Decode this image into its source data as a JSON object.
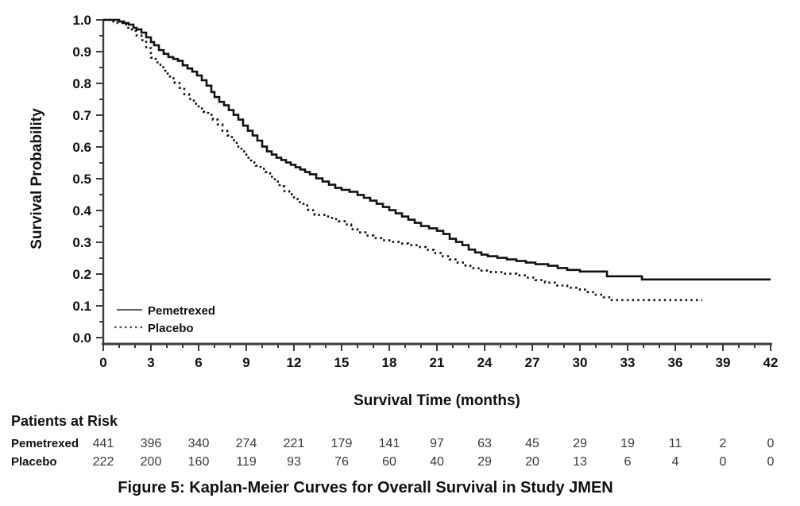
{
  "figure": {
    "title": "Figure 5: Kaplan-Meier Curves for Overall Survival in Study JMEN",
    "x_axis_label": "Survival Time (months)",
    "y_axis_label": "Survival Probability",
    "risk_header": "Patients at Risk"
  },
  "colors": {
    "curve": "#111111",
    "axis": "#3d3d3d",
    "legend_sample": "#4a4a4a",
    "risk_numbers": "#3a3a3a"
  },
  "chart_data": {
    "type": "line",
    "subtype": "kaplan-meier-step",
    "title": "Figure 5: Kaplan-Meier Curves for Overall Survival in Study JMEN",
    "xlabel": "Survival Time (months)",
    "ylabel": "Survival Probability",
    "xlim": [
      0,
      42
    ],
    "ylim": [
      0.0,
      1.0
    ],
    "grid": false,
    "legend_position": "lower-left-inside",
    "x_major_ticks": [
      0,
      3,
      6,
      9,
      12,
      15,
      18,
      21,
      24,
      27,
      30,
      33,
      36,
      39,
      42
    ],
    "x_minor_step": 1,
    "y_ticks": [
      {
        "label": "1.0",
        "value": 1.0
      },
      {
        "label": "0.9",
        "value": 0.9
      },
      {
        "label": "0.8",
        "value": 0.8
      },
      {
        "label": "0.7",
        "value": 0.7
      },
      {
        "label": "0.6",
        "value": 0.6
      },
      {
        "label": "0.5",
        "value": 0.5
      },
      {
        "label": "0.4",
        "value": 0.4
      },
      {
        "label": "0.3",
        "value": 0.3
      },
      {
        "label": "0.2",
        "value": 0.2
      },
      {
        "label": "0.1",
        "value": 0.1
      },
      {
        "label": "0.0",
        "value": 0.0
      }
    ],
    "y_minor_step": 0.05,
    "series": [
      {
        "name": "Pemetrexed",
        "line_style": "solid",
        "points": [
          [
            0,
            1.0
          ],
          [
            0.8,
            1.0
          ],
          [
            1.0,
            0.995
          ],
          [
            1.3,
            0.99
          ],
          [
            1.6,
            0.985
          ],
          [
            1.9,
            0.975
          ],
          [
            2.1,
            0.97
          ],
          [
            2.4,
            0.96
          ],
          [
            2.7,
            0.945
          ],
          [
            3.0,
            0.93
          ],
          [
            3.2,
            0.92
          ],
          [
            3.5,
            0.905
          ],
          [
            3.8,
            0.893
          ],
          [
            4.1,
            0.883
          ],
          [
            4.4,
            0.877
          ],
          [
            4.7,
            0.871
          ],
          [
            5.0,
            0.857
          ],
          [
            5.3,
            0.847
          ],
          [
            5.6,
            0.837
          ],
          [
            5.9,
            0.825
          ],
          [
            6.2,
            0.81
          ],
          [
            6.5,
            0.793
          ],
          [
            6.8,
            0.773
          ],
          [
            7.0,
            0.757
          ],
          [
            7.3,
            0.742
          ],
          [
            7.6,
            0.731
          ],
          [
            7.9,
            0.716
          ],
          [
            8.2,
            0.701
          ],
          [
            8.5,
            0.686
          ],
          [
            8.8,
            0.667
          ],
          [
            9.1,
            0.651
          ],
          [
            9.4,
            0.636
          ],
          [
            9.7,
            0.62
          ],
          [
            10.0,
            0.601
          ],
          [
            10.3,
            0.586
          ],
          [
            10.6,
            0.576
          ],
          [
            10.9,
            0.566
          ],
          [
            11.2,
            0.559
          ],
          [
            11.5,
            0.551
          ],
          [
            11.8,
            0.544
          ],
          [
            12.1,
            0.536
          ],
          [
            12.4,
            0.529
          ],
          [
            12.7,
            0.521
          ],
          [
            13.0,
            0.514
          ],
          [
            13.4,
            0.501
          ],
          [
            13.8,
            0.491
          ],
          [
            14.2,
            0.481
          ],
          [
            14.6,
            0.471
          ],
          [
            15.0,
            0.465
          ],
          [
            15.5,
            0.459
          ],
          [
            16.0,
            0.449
          ],
          [
            16.4,
            0.44
          ],
          [
            16.8,
            0.431
          ],
          [
            17.2,
            0.421
          ],
          [
            17.6,
            0.411
          ],
          [
            18.0,
            0.401
          ],
          [
            18.4,
            0.391
          ],
          [
            18.8,
            0.381
          ],
          [
            19.2,
            0.371
          ],
          [
            19.6,
            0.361
          ],
          [
            20.0,
            0.351
          ],
          [
            20.5,
            0.344
          ],
          [
            21.0,
            0.336
          ],
          [
            21.4,
            0.326
          ],
          [
            21.8,
            0.311
          ],
          [
            22.2,
            0.301
          ],
          [
            22.6,
            0.291
          ],
          [
            23.0,
            0.277
          ],
          [
            23.4,
            0.268
          ],
          [
            23.8,
            0.261
          ],
          [
            24.2,
            0.256
          ],
          [
            24.8,
            0.251
          ],
          [
            25.4,
            0.246
          ],
          [
            26.0,
            0.241
          ],
          [
            26.6,
            0.236
          ],
          [
            27.2,
            0.231
          ],
          [
            28.0,
            0.226
          ],
          [
            28.6,
            0.219
          ],
          [
            29.2,
            0.213
          ],
          [
            30.0,
            0.208
          ],
          [
            31.7,
            0.193
          ],
          [
            33.9,
            0.183
          ],
          [
            42.0,
            0.183
          ]
        ]
      },
      {
        "name": "Placebo",
        "line_style": "dotted",
        "points": [
          [
            0,
            1.0
          ],
          [
            0.5,
            0.995
          ],
          [
            0.9,
            0.99
          ],
          [
            1.2,
            0.985
          ],
          [
            1.5,
            0.975
          ],
          [
            1.8,
            0.965
          ],
          [
            2.1,
            0.951
          ],
          [
            2.4,
            0.936
          ],
          [
            2.7,
            0.911
          ],
          [
            3.0,
            0.881
          ],
          [
            3.3,
            0.866
          ],
          [
            3.6,
            0.851
          ],
          [
            3.9,
            0.831
          ],
          [
            4.2,
            0.816
          ],
          [
            4.5,
            0.801
          ],
          [
            4.8,
            0.786
          ],
          [
            5.1,
            0.766
          ],
          [
            5.4,
            0.751
          ],
          [
            5.7,
            0.736
          ],
          [
            6.0,
            0.721
          ],
          [
            6.3,
            0.711
          ],
          [
            6.6,
            0.701
          ],
          [
            6.9,
            0.686
          ],
          [
            7.2,
            0.671
          ],
          [
            7.5,
            0.651
          ],
          [
            7.8,
            0.636
          ],
          [
            8.1,
            0.621
          ],
          [
            8.4,
            0.601
          ],
          [
            8.7,
            0.586
          ],
          [
            9.0,
            0.566
          ],
          [
            9.3,
            0.551
          ],
          [
            9.6,
            0.541
          ],
          [
            9.9,
            0.531
          ],
          [
            10.2,
            0.521
          ],
          [
            10.5,
            0.506
          ],
          [
            10.8,
            0.491
          ],
          [
            11.1,
            0.476
          ],
          [
            11.4,
            0.461
          ],
          [
            11.7,
            0.451
          ],
          [
            12.0,
            0.436
          ],
          [
            12.3,
            0.426
          ],
          [
            12.6,
            0.416
          ],
          [
            12.9,
            0.401
          ],
          [
            13.3,
            0.386
          ],
          [
            14.0,
            0.381
          ],
          [
            14.4,
            0.373
          ],
          [
            14.8,
            0.366
          ],
          [
            15.2,
            0.356
          ],
          [
            15.6,
            0.341
          ],
          [
            16.0,
            0.331
          ],
          [
            16.5,
            0.321
          ],
          [
            17.0,
            0.313
          ],
          [
            17.5,
            0.306
          ],
          [
            18.0,
            0.301
          ],
          [
            18.6,
            0.296
          ],
          [
            19.2,
            0.291
          ],
          [
            19.8,
            0.285
          ],
          [
            20.3,
            0.276
          ],
          [
            20.8,
            0.266
          ],
          [
            21.3,
            0.256
          ],
          [
            21.8,
            0.246
          ],
          [
            22.3,
            0.236
          ],
          [
            22.8,
            0.226
          ],
          [
            23.3,
            0.218
          ],
          [
            23.8,
            0.211
          ],
          [
            24.4,
            0.206
          ],
          [
            25.2,
            0.201
          ],
          [
            26.0,
            0.196
          ],
          [
            26.6,
            0.189
          ],
          [
            27.2,
            0.181
          ],
          [
            27.8,
            0.173
          ],
          [
            28.5,
            0.164
          ],
          [
            29.2,
            0.157
          ],
          [
            30.0,
            0.151
          ],
          [
            30.5,
            0.143
          ],
          [
            31.0,
            0.135
          ],
          [
            31.5,
            0.127
          ],
          [
            32.0,
            0.118
          ],
          [
            37.7,
            0.118
          ]
        ]
      }
    ],
    "patients_at_risk": {
      "header": "Patients at Risk",
      "times": [
        0,
        3,
        6,
        9,
        12,
        15,
        18,
        21,
        24,
        27,
        30,
        33,
        36,
        39,
        42
      ],
      "rows": [
        {
          "label": "Pemetrexed",
          "counts": [
            441,
            396,
            340,
            274,
            221,
            179,
            141,
            97,
            63,
            45,
            29,
            19,
            11,
            2,
            0
          ]
        },
        {
          "label": "Placebo",
          "counts": [
            222,
            200,
            160,
            119,
            93,
            76,
            60,
            40,
            29,
            20,
            13,
            6,
            4,
            0,
            0
          ]
        }
      ]
    }
  }
}
